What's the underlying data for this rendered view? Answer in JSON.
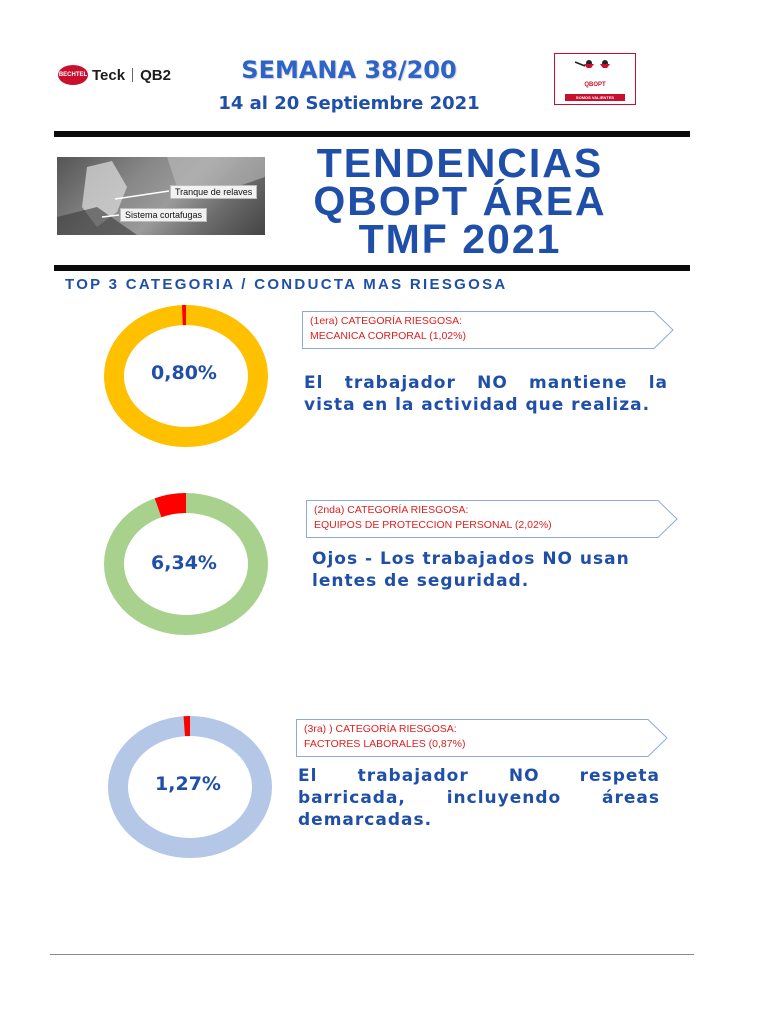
{
  "header": {
    "left_logo": {
      "badge_text": "BECHTEL",
      "brand1": "Teck",
      "brand2": "QB2"
    },
    "week": "SEMANA 38/200",
    "dates": "14 al 20 Septiembre 2021",
    "right_logo": {
      "title": "QBOPT",
      "band_text": "SOMOS VALIENTES"
    }
  },
  "photo": {
    "label_tranque": "Tranque de relaves",
    "label_cortafugas": "Sistema cortafugas"
  },
  "title": {
    "line1": "TENDENCIAS",
    "line2": "QBOPT ÁREA",
    "line3": "TMF 2021"
  },
  "section_title": "TOP 3 CATEGORIA / CONDUCTA MAS RIESGOSA",
  "colors": {
    "accent_blue": "#1f4fa8",
    "risk_red": "#e01e1e"
  },
  "items": [
    {
      "percent_label": "0,80%",
      "percent_value": 0.8,
      "ring_color": "#ffc000",
      "highlight_color": "#ff0000",
      "tag_line1": "(1era) CATEGORÍA RIESGOSA:",
      "tag_line2": "MECANICA CORPORAL (1,02%)",
      "description": "El trabajador NO mantiene la vista en la actividad que realiza."
    },
    {
      "percent_label": "6,34%",
      "percent_value": 6.34,
      "ring_color": "#a9d18e",
      "highlight_color": "#ff0000",
      "tag_line1": "(2nda) CATEGORÍA RIESGOSA:",
      "tag_line2": "EQUIPOS DE PROTECCION PERSONAL (2,02%)",
      "description": "Ojos - Los trabajados NO usan lentes de seguridad."
    },
    {
      "percent_label": "1,27%",
      "percent_value": 1.27,
      "ring_color": "#b4c7e7",
      "highlight_color": "#ff0000",
      "tag_line1": "(3ra) ) CATEGORÍA RIESGOSA:",
      "tag_line2": "FACTORES LABORALES (0,87%)",
      "description": "El trabajador NO respeta barricada, incluyendo áreas demarcadas."
    }
  ]
}
